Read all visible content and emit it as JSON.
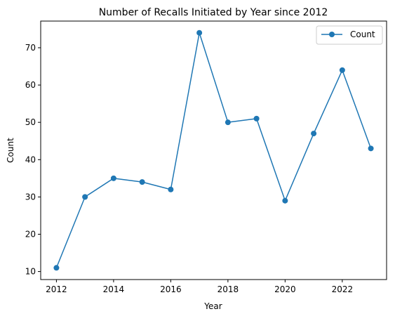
{
  "chart_data": {
    "type": "line",
    "title": "Number of Recalls Initiated by Year since 2012",
    "xlabel": "Year",
    "ylabel": "Count",
    "x": [
      2012,
      2013,
      2014,
      2015,
      2016,
      2017,
      2018,
      2019,
      2020,
      2021,
      2022,
      2023
    ],
    "series": [
      {
        "name": "Count",
        "values": [
          11,
          30,
          35,
          34,
          32,
          74,
          50,
          51,
          29,
          47,
          64,
          43
        ],
        "color": "#1f77b4",
        "marker": "circle"
      }
    ],
    "xlim": [
      2011.45,
      2023.55
    ],
    "ylim": [
      7.85,
      77.15
    ],
    "xticks": [
      2012,
      2014,
      2016,
      2018,
      2020,
      2022
    ],
    "yticks": [
      10,
      20,
      30,
      40,
      50,
      60,
      70
    ],
    "grid": false,
    "legend": "top-right"
  }
}
